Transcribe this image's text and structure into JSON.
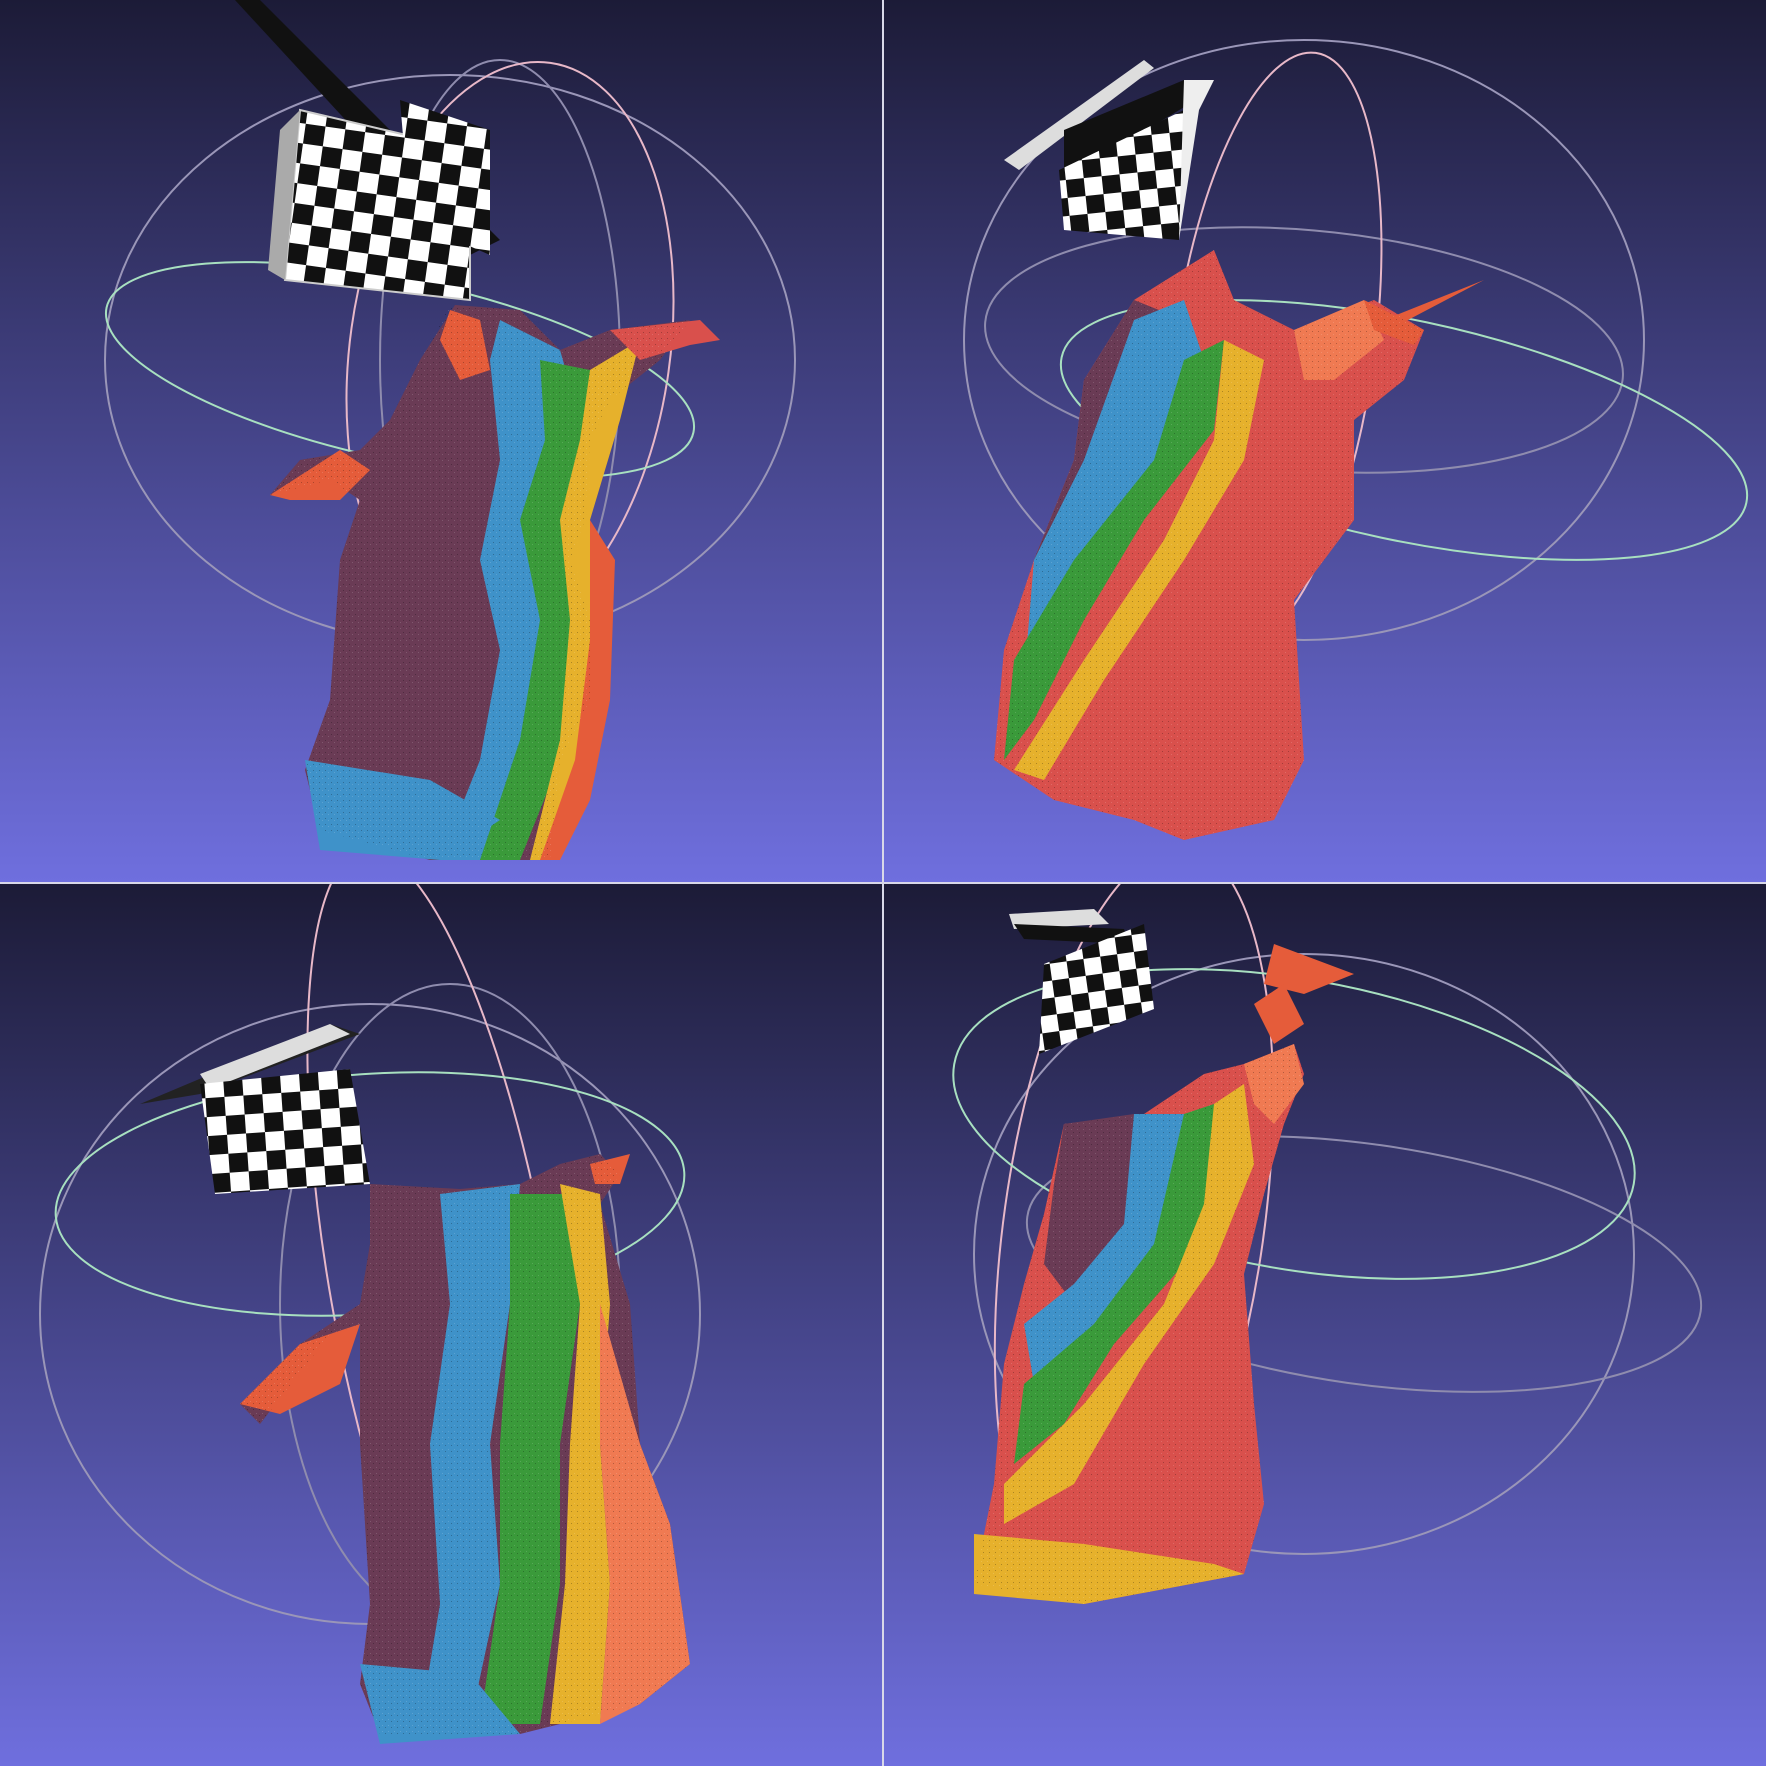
{
  "scene": {
    "background_top": "#1c1b37",
    "background_bottom": "#6f6fde",
    "trackball_colors": {
      "horizontal": "#a8e0c0",
      "vertical": "#e8b8c8",
      "frontal": "#9a96b8"
    },
    "mesh_palette": [
      "#6a3b55",
      "#3f92c9",
      "#3a9a3a",
      "#e6b12c",
      "#e55c3a",
      "#d9504c",
      "#f07a52"
    ]
  },
  "viewports": [
    {
      "id": "top-left",
      "icon": "textured-mesh-render"
    },
    {
      "id": "top-right",
      "icon": "textured-mesh-render"
    },
    {
      "id": "bottom-left",
      "icon": "textured-mesh-render"
    },
    {
      "id": "bottom-right",
      "icon": "textured-mesh-render"
    }
  ]
}
